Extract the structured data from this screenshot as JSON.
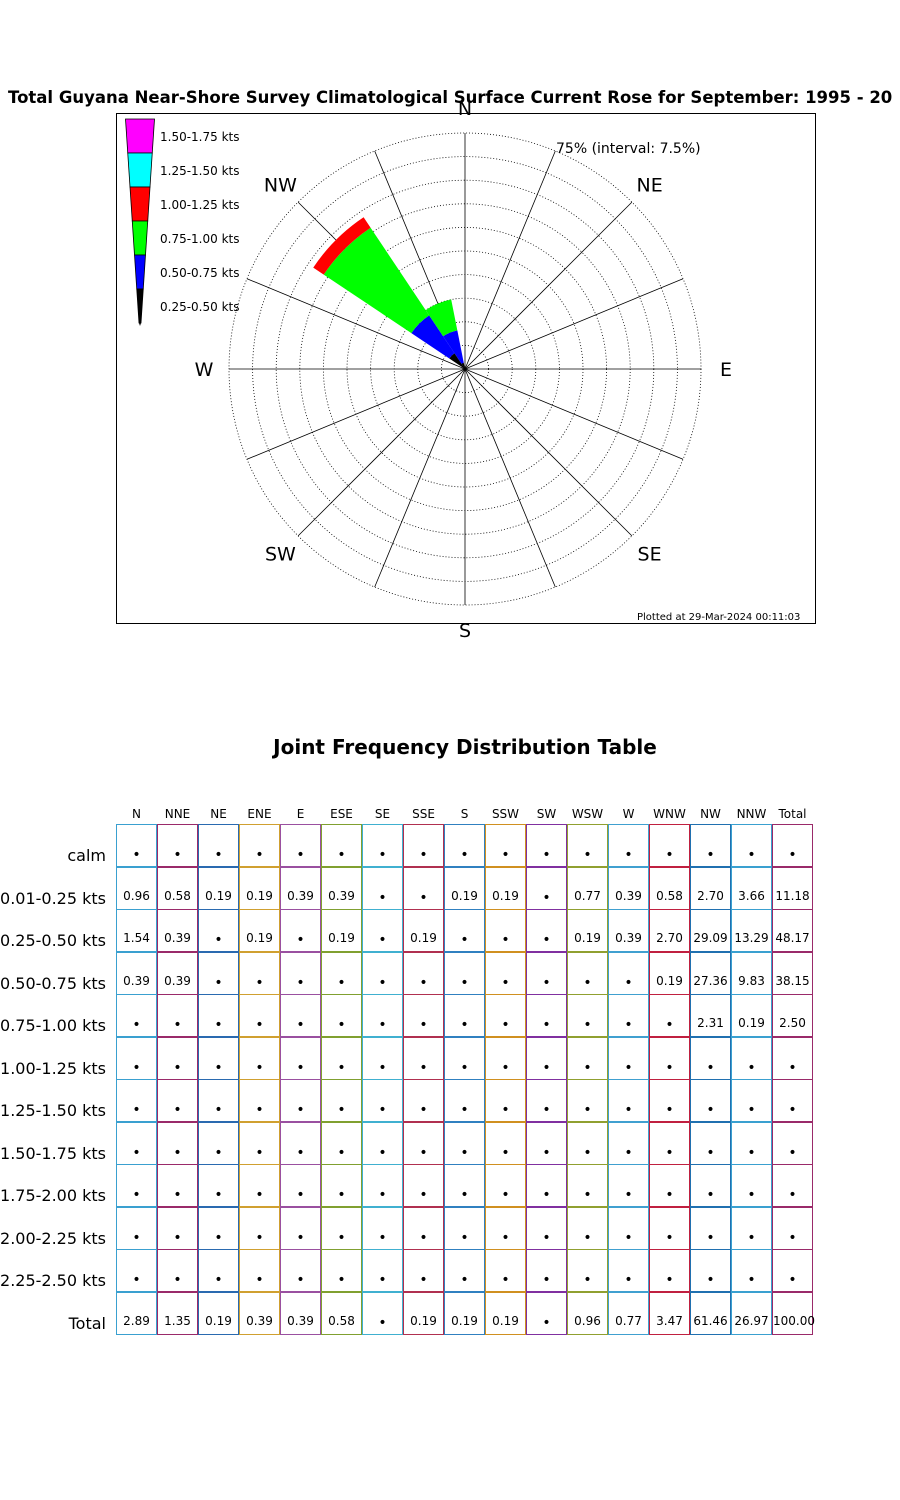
{
  "chart_data": [
    {
      "type": "wind-rose",
      "title": "Total Guyana Near-Shore Survey Climatological Surface Current Rose for September: 1995 - 20",
      "directions": [
        "N",
        "NE",
        "E",
        "SE",
        "S",
        "SW",
        "W",
        "NW"
      ],
      "interval_label": "75% (interval: 7.5%)",
      "rings": 10,
      "ring_interval_pct": 7.5,
      "max_pct": 75,
      "footer": "Plotted at 29-Mar-2024 00:11:03",
      "legend": [
        {
          "label": "1.50-1.75 kts",
          "color": "#ff00ff"
        },
        {
          "label": "1.25-1.50 kts",
          "color": "#00ffff"
        },
        {
          "label": "1.00-1.25 kts",
          "color": "#ff0000"
        },
        {
          "label": "0.75-1.00 kts",
          "color": "#00ff00"
        },
        {
          "label": "0.50-0.75 kts",
          "color": "#0000ff"
        },
        {
          "label": "0.25-0.50 kts",
          "color": "#000000"
        }
      ],
      "bins": [
        "0.25-0.50 kts",
        "0.50-0.75 kts",
        "0.75-1.00 kts",
        "1.00-1.25 kts"
      ],
      "petals": [
        {
          "direction": "NW",
          "angle_deg": 315,
          "cumulative_pct": [
            6.0,
            20.5,
            54.0,
            58.0
          ]
        },
        {
          "direction": "NNW",
          "angle_deg": 337.5,
          "cumulative_pct": [
            2.0,
            12.5,
            22.5,
            22.5
          ]
        }
      ]
    },
    {
      "type": "table",
      "title": "Joint Frequency Distribution Table",
      "columns": [
        "N",
        "NNE",
        "NE",
        "ENE",
        "E",
        "ESE",
        "SE",
        "SSE",
        "S",
        "SSW",
        "SW",
        "WSW",
        "W",
        "WNW",
        "NW",
        "NNW",
        "Total"
      ],
      "rows": [
        {
          "label": "calm",
          "values": [
            "•",
            "•",
            "•",
            "•",
            "•",
            "•",
            "•",
            "•",
            "•",
            "•",
            "•",
            "•",
            "•",
            "•",
            "•",
            "•",
            "•"
          ]
        },
        {
          "label": "0.01-0.25 kts",
          "values": [
            "0.96",
            "0.58",
            "0.19",
            "0.19",
            "0.39",
            "0.39",
            "•",
            "•",
            "0.19",
            "0.19",
            "•",
            "0.77",
            "0.39",
            "0.58",
            "2.70",
            "3.66",
            "11.18"
          ]
        },
        {
          "label": "0.25-0.50 kts",
          "values": [
            "1.54",
            "0.39",
            "•",
            "0.19",
            "•",
            "0.19",
            "•",
            "0.19",
            "•",
            "•",
            "•",
            "0.19",
            "0.39",
            "2.70",
            "29.09",
            "13.29",
            "48.17"
          ]
        },
        {
          "label": "0.50-0.75 kts",
          "values": [
            "0.39",
            "0.39",
            "•",
            "•",
            "•",
            "•",
            "•",
            "•",
            "•",
            "•",
            "•",
            "•",
            "•",
            "0.19",
            "27.36",
            "9.83",
            "38.15"
          ]
        },
        {
          "label": "0.75-1.00 kts",
          "values": [
            "•",
            "•",
            "•",
            "•",
            "•",
            "•",
            "•",
            "•",
            "•",
            "•",
            "•",
            "•",
            "•",
            "•",
            "2.31",
            "0.19",
            "2.50"
          ]
        },
        {
          "label": "1.00-1.25 kts",
          "values": [
            "•",
            "•",
            "•",
            "•",
            "•",
            "•",
            "•",
            "•",
            "•",
            "•",
            "•",
            "•",
            "•",
            "•",
            "•",
            "•",
            "•"
          ]
        },
        {
          "label": "1.25-1.50 kts",
          "values": [
            "•",
            "•",
            "•",
            "•",
            "•",
            "•",
            "•",
            "•",
            "•",
            "•",
            "•",
            "•",
            "•",
            "•",
            "•",
            "•",
            "•"
          ]
        },
        {
          "label": "1.50-1.75 kts",
          "values": [
            "•",
            "•",
            "•",
            "•",
            "•",
            "•",
            "•",
            "•",
            "•",
            "•",
            "•",
            "•",
            "•",
            "•",
            "•",
            "•",
            "•"
          ]
        },
        {
          "label": "1.75-2.00 kts",
          "values": [
            "•",
            "•",
            "•",
            "•",
            "•",
            "•",
            "•",
            "•",
            "•",
            "•",
            "•",
            "•",
            "•",
            "•",
            "•",
            "•",
            "•"
          ]
        },
        {
          "label": "2.00-2.25 kts",
          "values": [
            "•",
            "•",
            "•",
            "•",
            "•",
            "•",
            "•",
            "•",
            "•",
            "•",
            "•",
            "•",
            "•",
            "•",
            "•",
            "•",
            "•"
          ]
        },
        {
          "label": "2.25-2.50 kts",
          "values": [
            "•",
            "•",
            "•",
            "•",
            "•",
            "•",
            "•",
            "•",
            "•",
            "•",
            "•",
            "•",
            "•",
            "•",
            "•",
            "•",
            "•"
          ]
        },
        {
          "label": "Total",
          "values": [
            "2.89",
            "1.35",
            "0.19",
            "0.39",
            "0.39",
            "0.58",
            "•",
            "0.19",
            "0.19",
            "0.19",
            "•",
            "0.96",
            "0.77",
            "3.47",
            "61.46",
            "26.97",
            "100.00"
          ]
        }
      ],
      "column_colors": [
        "#3aa0d0",
        "#9a2a6a",
        "#2a6ab0",
        "#d0a030",
        "#9a50a0",
        "#80a030",
        "#40b0d0",
        "#b03050",
        "#3080c0",
        "#d09020",
        "#8030a0",
        "#90a030",
        "#40a0d0",
        "#c02040",
        "#2070b0",
        "#3aa0d0",
        "#9a2a6a"
      ]
    }
  ]
}
